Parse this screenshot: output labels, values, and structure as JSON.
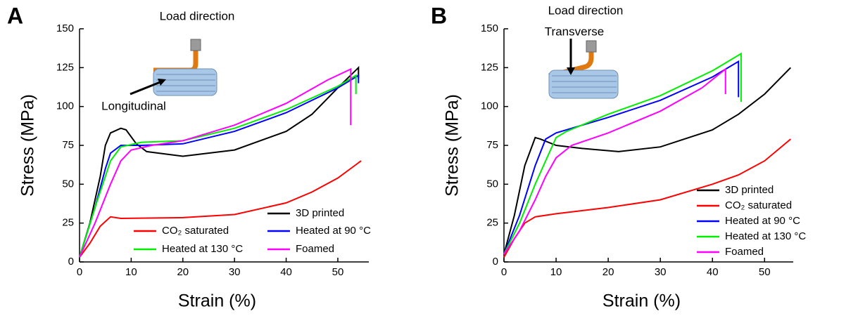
{
  "chart_data": [
    {
      "type": "line",
      "panel_label": "A",
      "annotations": [
        "Load direction",
        "Longitudinal"
      ],
      "xlabel": "Strain (%)",
      "ylabel": "Stress (MPa)",
      "xlim": [
        0,
        56
      ],
      "xticks": [
        0,
        10,
        20,
        30,
        40,
        50
      ],
      "ylim": [
        0,
        150
      ],
      "yticks": [
        0,
        25,
        50,
        75,
        100,
        125,
        150
      ],
      "series": [
        {
          "name": "3D printed",
          "color": "#000000",
          "x": [
            0,
            2,
            4,
            5,
            6,
            8,
            9,
            11,
            13,
            20,
            30,
            40,
            45,
            50,
            54,
            54
          ],
          "values": [
            3,
            25,
            55,
            75,
            83,
            86,
            85,
            76,
            71,
            68,
            72,
            84,
            95,
            112,
            125,
            118
          ]
        },
        {
          "name": "CO₂ saturated",
          "color": "#ff0000",
          "x": [
            0,
            2,
            4,
            6,
            8,
            20,
            30,
            40,
            45,
            50,
            54.5
          ],
          "values": [
            3,
            12,
            23,
            29,
            28,
            28.5,
            30.5,
            38,
            45,
            54,
            65
          ]
        },
        {
          "name": "Heated at 90 °C",
          "color": "#0000ff",
          "x": [
            0,
            3,
            5,
            6,
            8,
            12,
            20,
            30,
            40,
            50,
            54,
            54
          ],
          "values": [
            3,
            35,
            60,
            70,
            75,
            75,
            76,
            84,
            96,
            112,
            120,
            115
          ]
        },
        {
          "name": "Heated at 130 °C",
          "color": "#00ee00",
          "x": [
            0,
            3,
            6,
            8,
            12,
            20,
            30,
            40,
            50,
            53.5,
            53.5
          ],
          "values": [
            3,
            35,
            65,
            74,
            77,
            78,
            86,
            98,
            113,
            120,
            108
          ]
        },
        {
          "name": "Foamed",
          "color": "#ff00ff",
          "x": [
            0,
            3,
            6,
            8,
            10,
            14,
            20,
            30,
            40,
            48,
            52.5,
            52.5
          ],
          "values": [
            3,
            25,
            50,
            65,
            72,
            75,
            78,
            88,
            102,
            117,
            124,
            88
          ]
        }
      ]
    },
    {
      "type": "line",
      "panel_label": "B",
      "annotations": [
        "Load direction",
        "Transverse"
      ],
      "xlabel": "Strain (%)",
      "ylabel": "Stress (MPa)",
      "xlim": [
        0,
        55.5
      ],
      "xticks": [
        0,
        10,
        20,
        30,
        40,
        50
      ],
      "ylim": [
        0,
        150
      ],
      "yticks": [
        0,
        25,
        50,
        75,
        100,
        125,
        150
      ],
      "series": [
        {
          "name": "3D printed",
          "color": "#000000",
          "x": [
            0,
            2,
            4,
            6,
            7,
            10,
            15,
            22,
            30,
            40,
            45,
            50,
            55
          ],
          "values": [
            5,
            30,
            62,
            80,
            79,
            75,
            73,
            71,
            74,
            85,
            95,
            108,
            125
          ]
        },
        {
          "name": "CO₂ saturated",
          "color": "#ff0000",
          "x": [
            0,
            2,
            4,
            6,
            10,
            20,
            30,
            40,
            45,
            50,
            55
          ],
          "values": [
            3,
            15,
            25,
            29,
            31,
            35,
            40,
            50,
            56,
            65,
            79
          ]
        },
        {
          "name": "Heated at 90 °C",
          "color": "#0000ff",
          "x": [
            0,
            3,
            6,
            8,
            10,
            20,
            30,
            40,
            45,
            45
          ],
          "values": [
            5,
            30,
            62,
            79,
            83,
            93,
            104,
            119,
            129,
            106
          ]
        },
        {
          "name": "Heated at 130 °C",
          "color": "#00ee00",
          "x": [
            0,
            3,
            6,
            8,
            10,
            12,
            20,
            30,
            40,
            45.5,
            45.5
          ],
          "values": [
            5,
            25,
            50,
            65,
            80,
            84,
            95,
            107,
            123,
            134,
            103
          ]
        },
        {
          "name": "Foamed",
          "color": "#ff00ff",
          "x": [
            0,
            3,
            6,
            8,
            10,
            13,
            20,
            30,
            38,
            42.5,
            42.5
          ],
          "values": [
            5,
            20,
            40,
            55,
            67,
            75,
            83,
            97,
            112,
            124,
            108
          ]
        }
      ]
    }
  ]
}
